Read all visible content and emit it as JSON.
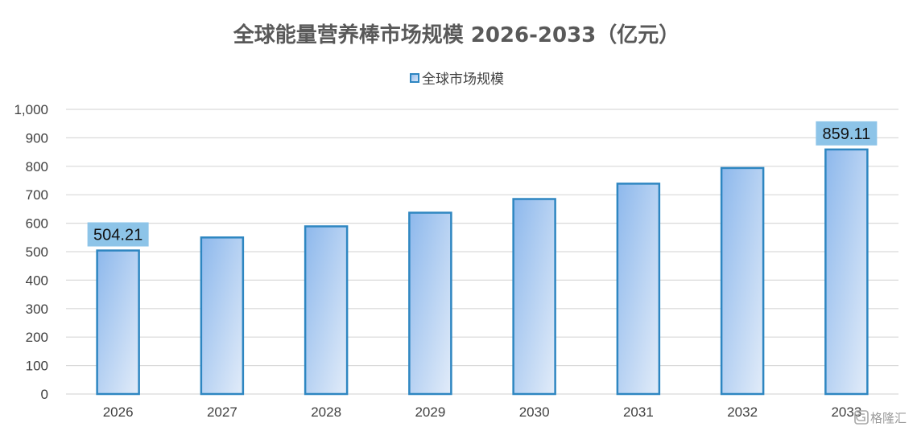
{
  "chart_data": {
    "type": "bar",
    "title": "全球能量营养棒市场规模 2026-2033（亿元）",
    "categories": [
      "2026",
      "2027",
      "2028",
      "2029",
      "2030",
      "2031",
      "2032",
      "2033"
    ],
    "series": [
      {
        "name": "全球市场规模",
        "values": [
          504.21,
          550,
          589,
          637,
          685,
          739,
          794,
          859.11
        ],
        "color": "#2E86C1"
      }
    ],
    "data_labels": [
      {
        "index": 0,
        "text": "504.21"
      },
      {
        "index": 7,
        "text": "859.11"
      }
    ],
    "ylim": [
      0,
      1000
    ],
    "yticks": [
      0,
      100,
      200,
      300,
      400,
      500,
      600,
      700,
      800,
      900,
      1000
    ],
    "ytick_labels": [
      "0",
      "100",
      "200",
      "300",
      "400",
      "500",
      "600",
      "700",
      "800",
      "900",
      "1,000"
    ],
    "xlabel": "",
    "ylabel": "",
    "grid": true,
    "legend": "top-center"
  },
  "watermark": {
    "text": "格隆汇",
    "icon": "glh-logo-icon"
  },
  "colors": {
    "bar_stroke": "#2E86C1",
    "bar_fill_top": "#8DB8EC",
    "bar_fill_bottom": "#DCE8F8",
    "label_bg": "#8DC4E8",
    "grid": "#D9D9D9"
  }
}
